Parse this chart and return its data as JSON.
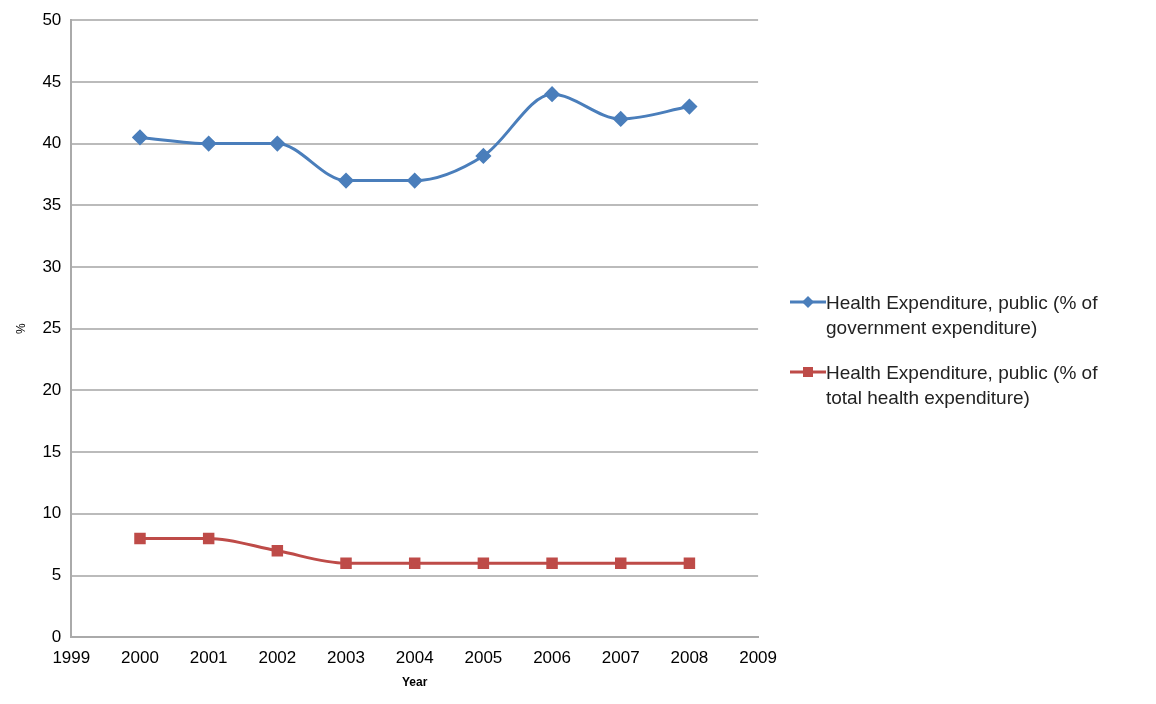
{
  "chart_data": {
    "type": "line",
    "xlabel": "Year",
    "ylabel": "%",
    "x": [
      2000,
      2001,
      2002,
      2003,
      2004,
      2005,
      2006,
      2007,
      2008
    ],
    "series": [
      {
        "name": "Health Expenditure, public (% of government expenditure)",
        "color": "#4a7ebb",
        "marker": "diamond",
        "values": [
          40.5,
          40,
          40,
          37,
          37,
          39,
          44,
          42,
          43
        ]
      },
      {
        "name": "Health Expenditure, public (% of total health expenditure)",
        "color": "#be4b48",
        "marker": "square",
        "values": [
          8,
          8,
          7,
          6,
          6,
          6,
          6,
          6,
          6
        ]
      }
    ],
    "xlim": [
      1999,
      2009
    ],
    "xticks": [
      1999,
      2000,
      2001,
      2002,
      2003,
      2004,
      2005,
      2006,
      2007,
      2008,
      2009
    ],
    "ylim": [
      0,
      50
    ],
    "yticks": [
      0,
      5,
      10,
      15,
      20,
      25,
      30,
      35,
      40,
      45,
      50
    ],
    "grid": "y",
    "legend": "right"
  }
}
